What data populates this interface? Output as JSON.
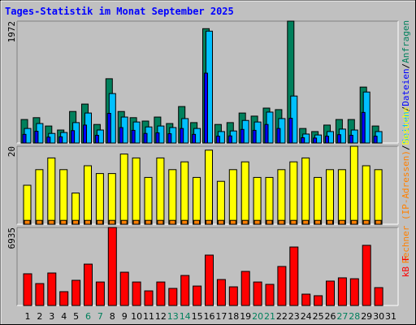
{
  "chart_data": [
    {
      "type": "bar",
      "title": "Tages-Statistik im Monat September 2025",
      "ylim": [
        0,
        1972
      ],
      "yticks": [
        1972
      ],
      "legend_separator": "/",
      "series": [
        {
          "name": "Anfragen",
          "color": "#00805c",
          "values": [
            380,
            410,
            275,
            210,
            510,
            630,
            300,
            1040,
            510,
            410,
            355,
            420,
            315,
            590,
            330,
            1850,
            300,
            330,
            485,
            435,
            565,
            540,
            1972,
            235,
            185,
            290,
            380,
            380,
            905,
            275,
            0
          ]
        },
        {
          "name": "Dateien",
          "color": "#0000ff",
          "values": [
            140,
            190,
            95,
            100,
            200,
            290,
            125,
            480,
            250,
            205,
            155,
            165,
            150,
            235,
            140,
            1130,
            110,
            115,
            220,
            205,
            300,
            235,
            400,
            85,
            80,
            110,
            135,
            125,
            495,
            110,
            0
          ]
        },
        {
          "name": "Seiten",
          "color": "#00c0ff",
          "values": [
            235,
            315,
            155,
            170,
            330,
            485,
            210,
            800,
            420,
            340,
            260,
            275,
            250,
            395,
            235,
            1810,
            185,
            195,
            365,
            340,
            500,
            395,
            760,
            145,
            130,
            185,
            225,
            210,
            825,
            185,
            0
          ]
        }
      ]
    },
    {
      "type": "bar",
      "ylim": [
        0,
        20
      ],
      "yticks": [
        20
      ],
      "legend_separator": "/",
      "series": [
        {
          "name": "Rechner (IP-Adressen)",
          "color": "#ff8000",
          "values": [
            1,
            1,
            1,
            1,
            1,
            1,
            1,
            1,
            1,
            1,
            1,
            1,
            1,
            1,
            1,
            1,
            1,
            1,
            1,
            1,
            1,
            1,
            1,
            1,
            1,
            1,
            1,
            1,
            1,
            1,
            0
          ]
        },
        {
          "name": "Besuche",
          "color": "#ffff00",
          "values": [
            10,
            14,
            17,
            14,
            8,
            15,
            13,
            13,
            18,
            17,
            12,
            17,
            14,
            16,
            12,
            19,
            11,
            14,
            16,
            12,
            12,
            14,
            16,
            17,
            12,
            14,
            14,
            20,
            15,
            14,
            0
          ]
        }
      ]
    },
    {
      "type": "bar",
      "ylim": [
        0,
        6935
      ],
      "yticks": [
        6935
      ],
      "categories": [
        "1",
        "2",
        "3",
        "4",
        "5",
        "6",
        "7",
        "8",
        "9",
        "10",
        "11",
        "12",
        "13",
        "14",
        "15",
        "16",
        "17",
        "18",
        "19",
        "20",
        "21",
        "22",
        "23",
        "24",
        "25",
        "26",
        "27",
        "28",
        "29",
        "30",
        "31"
      ],
      "weekend_days": [
        5,
        6,
        12,
        13,
        19,
        20,
        26,
        27
      ],
      "weekend_color": "#00805c",
      "series": [
        {
          "name": "kB F",
          "color": "#ff0000",
          "values": [
            2820,
            1950,
            2890,
            1230,
            2240,
            3680,
            2090,
            6935,
            2960,
            2090,
            1300,
            2090,
            1520,
            2670,
            1730,
            4480,
            2310,
            1660,
            3030,
            2090,
            1880,
            3470,
            5200,
            1010,
            870,
            2170,
            2460,
            2380,
            5350,
            1590,
            0
          ]
        }
      ]
    }
  ]
}
